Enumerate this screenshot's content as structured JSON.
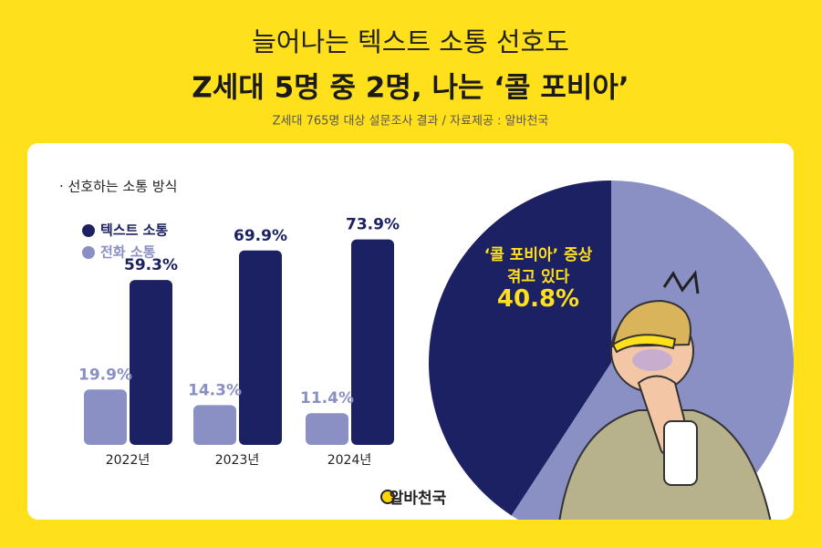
{
  "header": {
    "title": "늘어나는 텍스트 소통 선호도",
    "subtitle": "Z세대 5명 중 2명, 나는 ‘콜 포비아’",
    "source": "Z세대 765명 대상 설문조사 결과 / 자료제공 : 알바천국"
  },
  "brand": "알바천국",
  "chart_data": [
    {
      "type": "bar",
      "title": "· 선호하는 소통 방식",
      "categories": [
        "2022년",
        "2023년",
        "2024년"
      ],
      "series": [
        {
          "name": "텍스트 소통",
          "color": "#1c2163",
          "values": [
            59.3,
            69.9,
            73.9
          ],
          "value_labels": [
            "59.3%",
            "69.9%",
            "73.9%"
          ]
        },
        {
          "name": "전화 소통",
          "color": "#8a8fc4",
          "values": [
            19.9,
            14.3,
            11.4
          ],
          "value_labels": [
            "19.9%",
            "14.3%",
            "11.4%"
          ]
        }
      ]
    },
    {
      "type": "pie",
      "categories": [
        "‘콜 포비아’ 증상 겪고 있다",
        null
      ],
      "values": [
        40.8,
        59.2
      ],
      "value_labels": [
        "40.8%",
        null
      ],
      "colors": [
        "#1c2163",
        "#8a8fc4"
      ]
    }
  ]
}
